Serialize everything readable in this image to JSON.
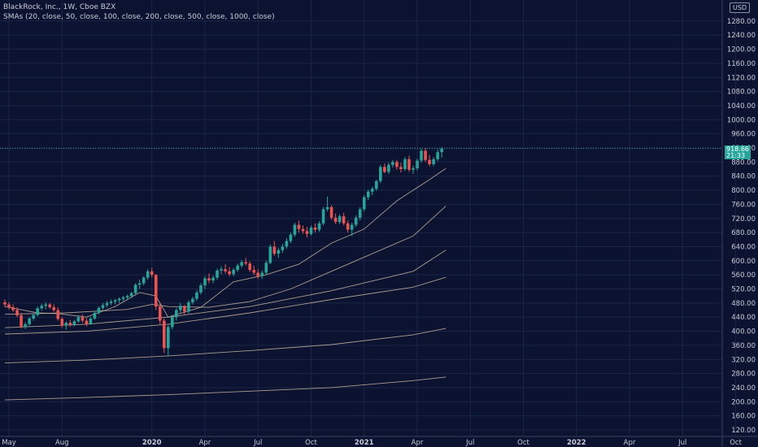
{
  "header": {
    "title": "BlackRock, Inc., 1W, Cboe BZX",
    "indicator": "SMAs (20, close, 50, close, 100, close, 200, close, 500, close, 1000, close)"
  },
  "currency": "USD",
  "last_price": {
    "value": "918.66",
    "countdown": "21:33",
    "color": "#26a69a"
  },
  "colors": {
    "background": "#0b1331",
    "grid": "#1b2546",
    "up": "#26a69a",
    "down": "#ef5350",
    "axis_text": "#c9ccd6",
    "sma": "#c8b6a0"
  },
  "chart_data": {
    "type": "candlestick",
    "title": "BlackRock, Inc., 1W, Cboe BZX",
    "y_axis": {
      "ylim": [
        110,
        1340
      ],
      "ticks": [
        1280,
        1240,
        1200,
        1160,
        1120,
        1080,
        1040,
        1000,
        960,
        920,
        880,
        840,
        800,
        760,
        720,
        680,
        640,
        600,
        560,
        520,
        480,
        440,
        400,
        360,
        320,
        280,
        240,
        200,
        160,
        120
      ],
      "tick_labels": [
        "1280.00",
        "1240.00",
        "1200.00",
        "1160.00",
        "1120.00",
        "1080.00",
        "1040.00",
        "1000.00",
        "960.00",
        "920.00",
        "880.00",
        "840.00",
        "800.00",
        "760.00",
        "720.00",
        "680.00",
        "640.00",
        "600.00",
        "560.00",
        "520.00",
        "480.00",
        "440.00",
        "400.00",
        "360.00",
        "320.00",
        "280.00",
        "240.00",
        "200.00",
        "160.00",
        "120.00"
      ]
    },
    "x_axis": {
      "tick_labels": [
        "May",
        "Aug",
        "2020",
        "Apr",
        "Jul",
        "Oct",
        "2021",
        "Apr",
        "Jul",
        "Oct",
        "2022",
        "Apr",
        "Jul",
        "Oct"
      ],
      "tick_weeks": [
        0,
        13,
        35,
        48,
        61,
        74,
        87,
        100,
        113,
        126,
        139,
        152,
        165,
        178
      ]
    },
    "grid": true,
    "candles": [
      [
        482,
        490,
        468,
        476
      ],
      [
        476,
        482,
        462,
        468
      ],
      [
        468,
        476,
        455,
        460
      ],
      [
        460,
        468,
        440,
        445
      ],
      [
        445,
        452,
        408,
        412
      ],
      [
        412,
        425,
        406,
        420
      ],
      [
        420,
        440,
        416,
        436
      ],
      [
        436,
        450,
        430,
        446
      ],
      [
        446,
        470,
        442,
        465
      ],
      [
        465,
        478,
        458,
        472
      ],
      [
        472,
        482,
        462,
        476
      ],
      [
        476,
        480,
        464,
        468
      ],
      [
        468,
        476,
        455,
        460
      ],
      [
        460,
        468,
        430,
        435
      ],
      [
        435,
        440,
        410,
        416
      ],
      [
        416,
        428,
        405,
        424
      ],
      [
        424,
        432,
        412,
        418
      ],
      [
        418,
        432,
        414,
        428
      ],
      [
        428,
        446,
        424,
        440
      ],
      [
        440,
        448,
        424,
        430
      ],
      [
        430,
        438,
        414,
        420
      ],
      [
        420,
        440,
        418,
        436
      ],
      [
        436,
        458,
        432,
        452
      ],
      [
        452,
        470,
        448,
        466
      ],
      [
        466,
        480,
        460,
        474
      ],
      [
        474,
        486,
        468,
        480
      ],
      [
        480,
        490,
        474,
        484
      ],
      [
        484,
        492,
        476,
        488
      ],
      [
        488,
        496,
        480,
        492
      ],
      [
        492,
        500,
        486,
        496
      ],
      [
        496,
        504,
        488,
        500
      ],
      [
        500,
        512,
        494,
        508
      ],
      [
        508,
        536,
        504,
        532
      ],
      [
        532,
        546,
        520,
        536
      ],
      [
        536,
        556,
        530,
        552
      ],
      [
        552,
        576,
        546,
        570
      ],
      [
        570,
        580,
        552,
        560
      ],
      [
        560,
        562,
        460,
        470
      ],
      [
        470,
        480,
        420,
        430
      ],
      [
        430,
        436,
        338,
        352
      ],
      [
        352,
        420,
        330,
        412
      ],
      [
        412,
        446,
        406,
        440
      ],
      [
        440,
        466,
        430,
        460
      ],
      [
        460,
        480,
        452,
        472
      ],
      [
        472,
        474,
        448,
        456
      ],
      [
        456,
        488,
        450,
        482
      ],
      [
        482,
        498,
        476,
        492
      ],
      [
        492,
        516,
        486,
        510
      ],
      [
        510,
        536,
        504,
        530
      ],
      [
        530,
        556,
        520,
        550
      ],
      [
        550,
        564,
        536,
        544
      ],
      [
        544,
        558,
        536,
        552
      ],
      [
        552,
        578,
        546,
        572
      ],
      [
        572,
        584,
        562,
        576
      ],
      [
        576,
        590,
        564,
        570
      ],
      [
        570,
        582,
        556,
        562
      ],
      [
        562,
        580,
        556,
        574
      ],
      [
        574,
        592,
        568,
        586
      ],
      [
        586,
        602,
        580,
        596
      ],
      [
        596,
        608,
        586,
        592
      ],
      [
        592,
        598,
        568,
        574
      ],
      [
        574,
        586,
        560,
        566
      ],
      [
        566,
        576,
        548,
        556
      ],
      [
        556,
        572,
        548,
        566
      ],
      [
        566,
        600,
        562,
        594
      ],
      [
        594,
        646,
        590,
        640
      ],
      [
        640,
        656,
        614,
        620
      ],
      [
        620,
        636,
        608,
        630
      ],
      [
        630,
        648,
        622,
        640
      ],
      [
        640,
        664,
        634,
        656
      ],
      [
        656,
        680,
        650,
        674
      ],
      [
        674,
        708,
        668,
        702
      ],
      [
        702,
        714,
        680,
        690
      ],
      [
        690,
        700,
        676,
        684
      ],
      [
        684,
        696,
        666,
        676
      ],
      [
        676,
        700,
        672,
        694
      ],
      [
        694,
        706,
        680,
        688
      ],
      [
        688,
        712,
        682,
        706
      ],
      [
        706,
        752,
        700,
        746
      ],
      [
        746,
        782,
        740,
        752
      ],
      [
        752,
        758,
        716,
        722
      ],
      [
        722,
        734,
        704,
        710
      ],
      [
        710,
        732,
        704,
        726
      ],
      [
        726,
        736,
        700,
        706
      ],
      [
        706,
        714,
        680,
        688
      ],
      [
        688,
        708,
        670,
        702
      ],
      [
        702,
        728,
        696,
        722
      ],
      [
        722,
        752,
        714,
        746
      ],
      [
        746,
        786,
        740,
        780
      ],
      [
        780,
        802,
        772,
        796
      ],
      [
        796,
        810,
        786,
        804
      ],
      [
        804,
        830,
        798,
        826
      ],
      [
        826,
        872,
        820,
        866
      ],
      [
        866,
        876,
        848,
        852
      ],
      [
        852,
        878,
        846,
        872
      ],
      [
        872,
        886,
        864,
        880
      ],
      [
        880,
        886,
        858,
        866
      ],
      [
        866,
        878,
        850,
        860
      ],
      [
        860,
        894,
        854,
        888
      ],
      [
        888,
        898,
        852,
        858
      ],
      [
        858,
        870,
        846,
        862
      ],
      [
        862,
        890,
        856,
        884
      ],
      [
        884,
        918,
        878,
        912
      ],
      [
        912,
        920,
        880,
        886
      ],
      [
        886,
        900,
        868,
        874
      ],
      [
        874,
        894,
        868,
        888
      ],
      [
        888,
        916,
        882,
        908
      ],
      [
        908,
        922,
        892,
        918
      ]
    ],
    "sma_series": [
      {
        "name": "SMA 20",
        "points": [
          [
            0,
            470
          ],
          [
            8,
            452
          ],
          [
            13,
            450
          ],
          [
            20,
            440
          ],
          [
            27,
            470
          ],
          [
            33,
            510
          ],
          [
            37,
            500
          ],
          [
            40,
            440
          ],
          [
            48,
            468
          ],
          [
            56,
            540
          ],
          [
            64,
            560
          ],
          [
            72,
            590
          ],
          [
            80,
            650
          ],
          [
            88,
            690
          ],
          [
            96,
            770
          ],
          [
            104,
            830
          ],
          [
            108,
            862
          ]
        ]
      },
      {
        "name": "SMA 50",
        "points": [
          [
            0,
            448
          ],
          [
            15,
            452
          ],
          [
            30,
            462
          ],
          [
            36,
            476
          ],
          [
            40,
            470
          ],
          [
            50,
            468
          ],
          [
            60,
            484
          ],
          [
            70,
            520
          ],
          [
            80,
            570
          ],
          [
            90,
            620
          ],
          [
            100,
            670
          ],
          [
            108,
            755
          ]
        ]
      },
      {
        "name": "SMA 100",
        "points": [
          [
            0,
            410
          ],
          [
            20,
            420
          ],
          [
            40,
            440
          ],
          [
            60,
            470
          ],
          [
            80,
            515
          ],
          [
            100,
            570
          ],
          [
            108,
            630
          ]
        ]
      },
      {
        "name": "SMA 200",
        "points": [
          [
            0,
            392
          ],
          [
            20,
            400
          ],
          [
            40,
            420
          ],
          [
            60,
            452
          ],
          [
            80,
            490
          ],
          [
            100,
            525
          ],
          [
            108,
            553
          ]
        ]
      },
      {
        "name": "SMA 500",
        "points": [
          [
            0,
            310
          ],
          [
            20,
            318
          ],
          [
            40,
            330
          ],
          [
            60,
            345
          ],
          [
            80,
            362
          ],
          [
            100,
            390
          ],
          [
            108,
            408
          ]
        ]
      },
      {
        "name": "SMA 1000",
        "points": [
          [
            0,
            205
          ],
          [
            20,
            212
          ],
          [
            40,
            220
          ],
          [
            60,
            230
          ],
          [
            80,
            240
          ],
          [
            100,
            260
          ],
          [
            108,
            270
          ]
        ]
      }
    ]
  }
}
